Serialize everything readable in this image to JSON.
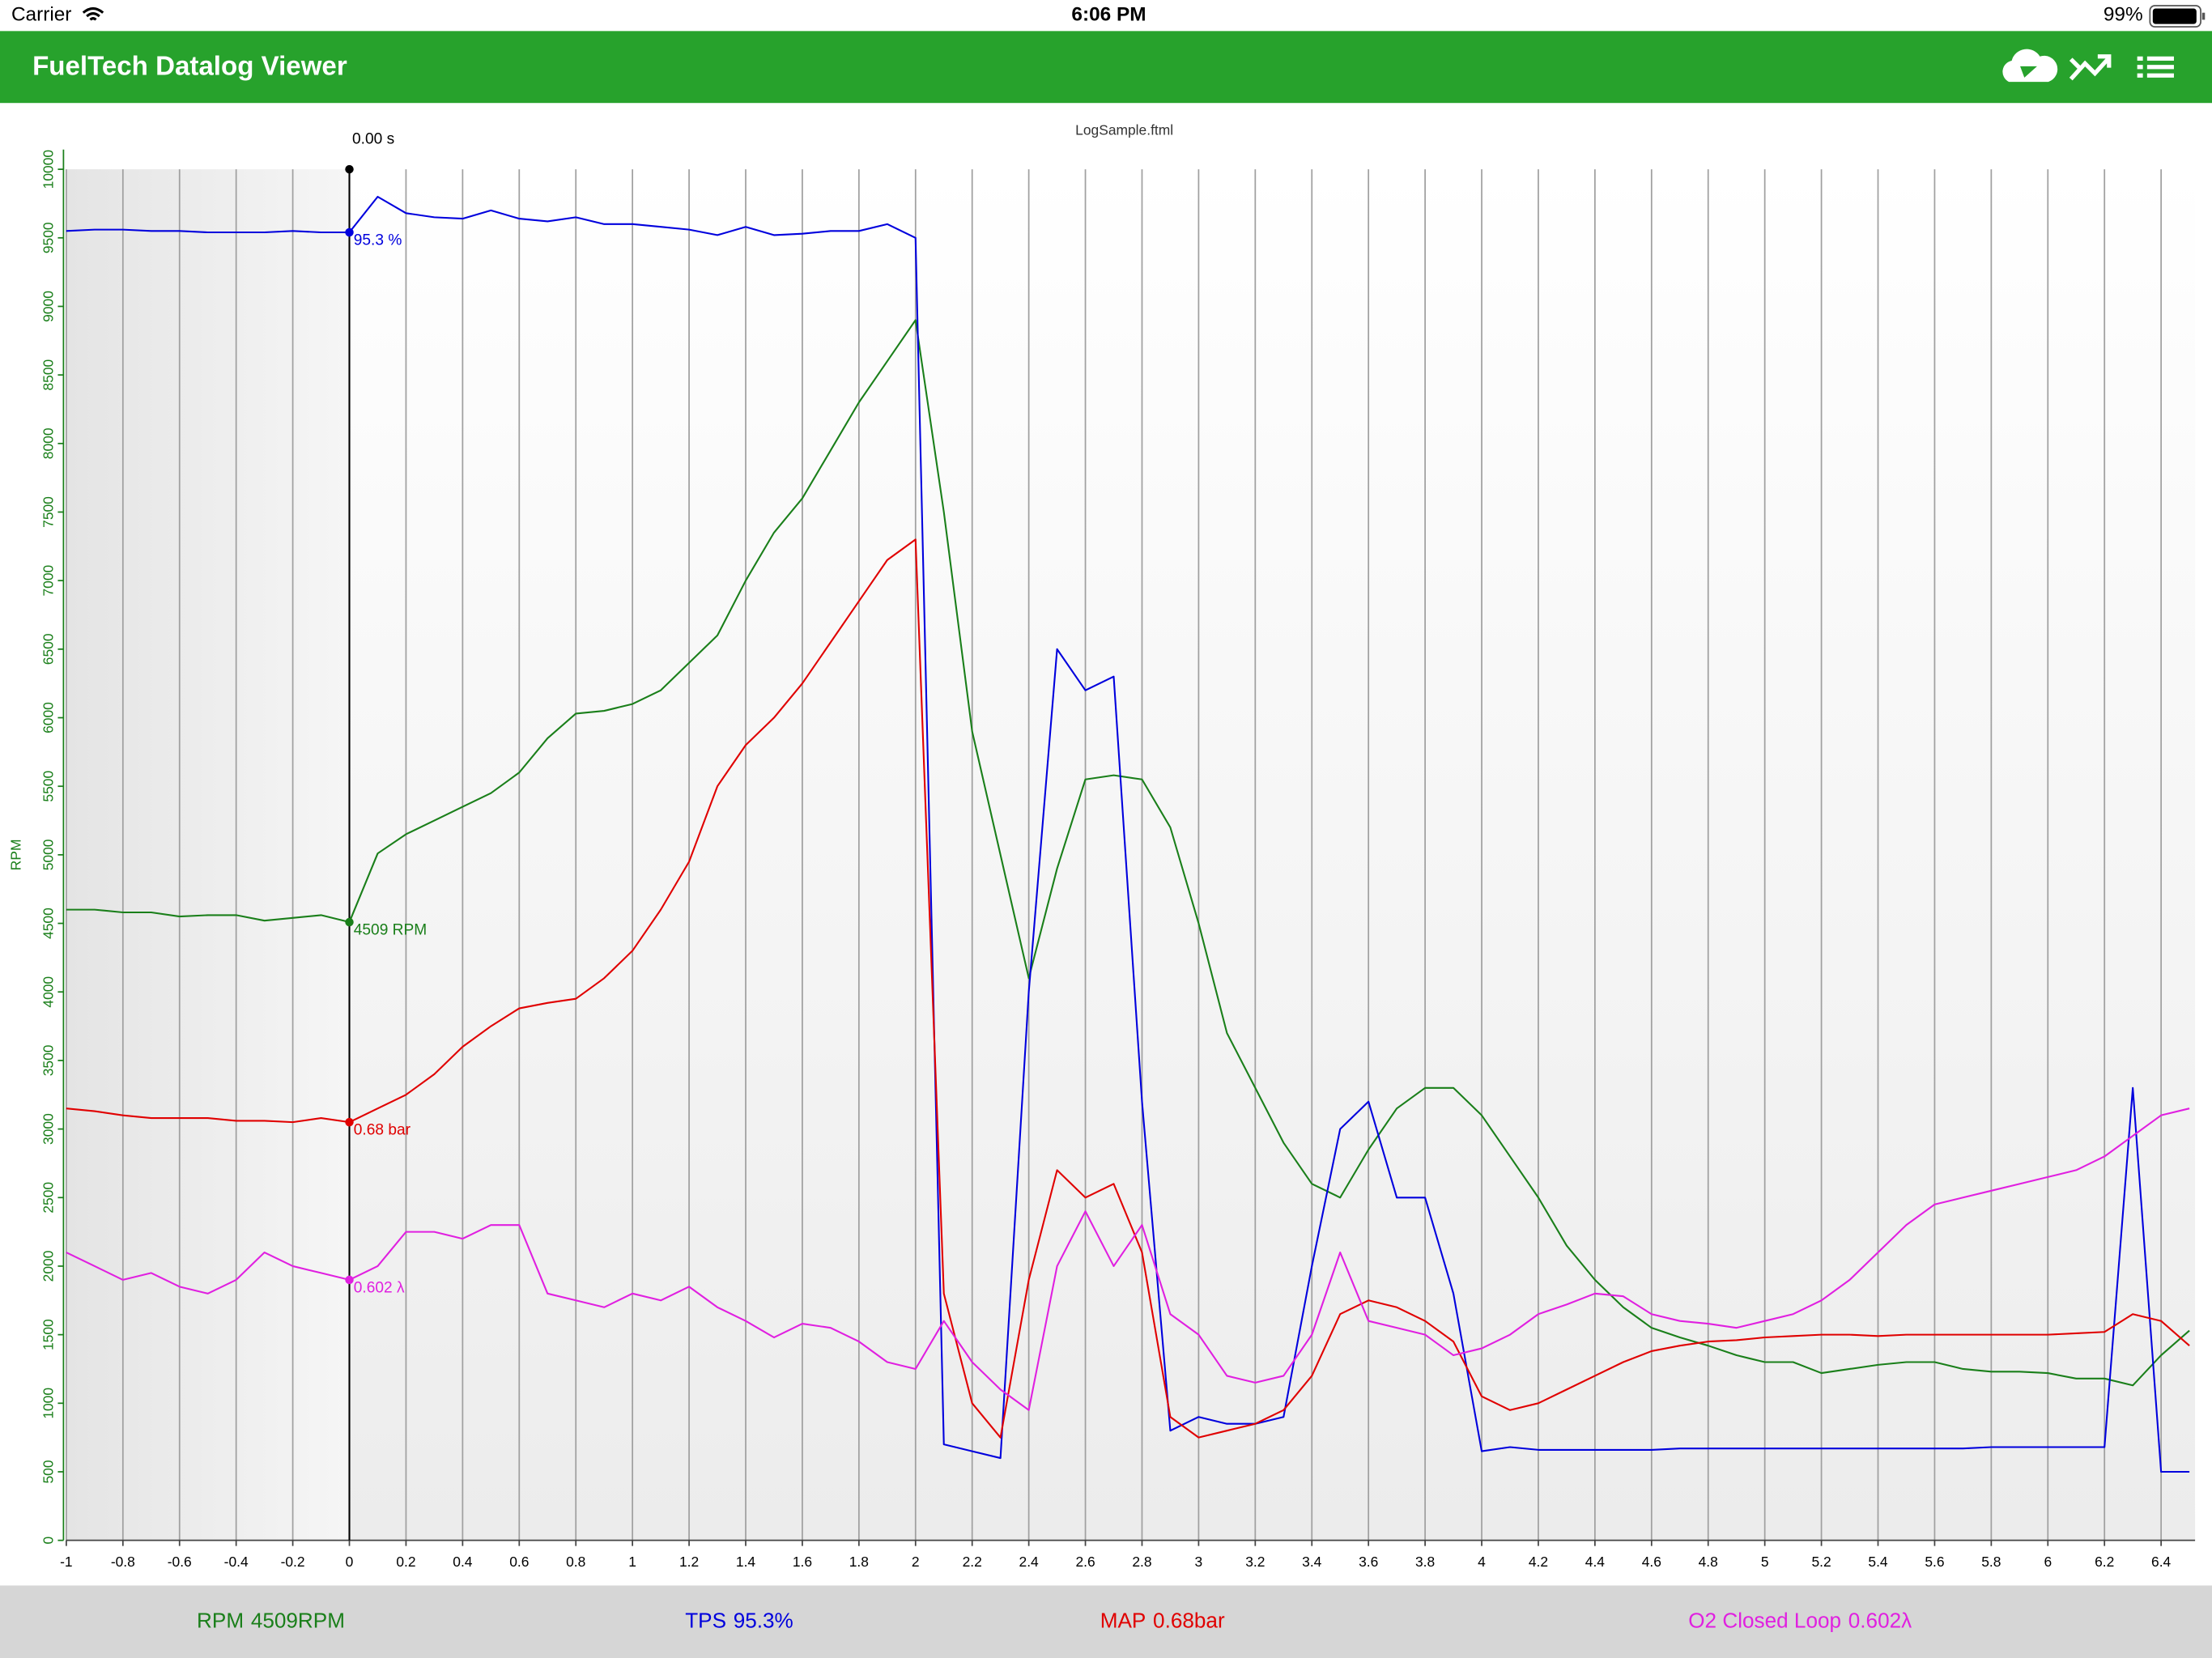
{
  "status_bar": {
    "carrier": "Carrier",
    "time": "6:06 PM",
    "battery": "99%"
  },
  "app_bar": {
    "title": "FuelTech Datalog Viewer"
  },
  "chart_data": {
    "type": "line",
    "title": "LogSample.ftml",
    "y_label": "RPM",
    "xlim": [
      -1,
      6.52
    ],
    "ylim": [
      0,
      10000
    ],
    "xticks": [
      -1,
      -0.8,
      -0.6,
      -0.4,
      -0.2,
      0,
      0.2,
      0.4,
      0.6,
      0.8,
      1,
      1.2,
      1.4,
      1.6,
      1.8,
      2,
      2.2,
      2.4,
      2.6,
      2.8,
      3,
      3.2,
      3.4,
      3.6,
      3.8,
      4,
      4.2,
      4.4,
      4.6,
      4.8,
      5,
      5.2,
      5.4,
      5.6,
      5.8,
      6,
      6.2,
      6.4
    ],
    "yticks": [
      0,
      500,
      1000,
      1500,
      2000,
      2500,
      3000,
      3500,
      4000,
      4500,
      5000,
      5500,
      6000,
      6500,
      7000,
      7500,
      8000,
      8500,
      9000,
      9500,
      10000
    ],
    "grid": true,
    "cursor": {
      "x": 0,
      "label": "0.00 s"
    },
    "x": [
      -1,
      -0.9,
      -0.8,
      -0.7,
      -0.6,
      -0.5,
      -0.4,
      -0.3,
      -0.2,
      -0.1,
      0,
      0.1,
      0.2,
      0.3,
      0.4,
      0.5,
      0.6,
      0.7,
      0.8,
      0.9,
      1,
      1.1,
      1.2,
      1.3,
      1.4,
      1.5,
      1.6,
      1.7,
      1.8,
      1.9,
      2,
      2.1,
      2.2,
      2.3,
      2.4,
      2.5,
      2.6,
      2.7,
      2.8,
      2.9,
      3,
      3.1,
      3.2,
      3.3,
      3.4,
      3.5,
      3.6,
      3.7,
      3.8,
      3.9,
      4,
      4.1,
      4.2,
      4.3,
      4.4,
      4.5,
      4.6,
      4.7,
      4.8,
      4.9,
      5,
      5.1,
      5.2,
      5.3,
      5.4,
      5.5,
      5.6,
      5.7,
      5.8,
      5.9,
      6,
      6.1,
      6.2,
      6.3,
      6.4,
      6.5
    ],
    "series": [
      {
        "name": "RPM",
        "readout": "4509RPM",
        "cursor_label": "4509 RPM",
        "color": "#1a7f1a",
        "values": [
          4600,
          4600,
          4580,
          4580,
          4550,
          4560,
          4560,
          4520,
          4540,
          4560,
          4509,
          5010,
          5150,
          5250,
          5350,
          5450,
          5600,
          5850,
          6030,
          6050,
          6100,
          6200,
          6400,
          6600,
          7000,
          7350,
          7600,
          7950,
          8300,
          8600,
          8900,
          7500,
          5900,
          5000,
          4100,
          4900,
          5550,
          5580,
          5550,
          5200,
          4500,
          3700,
          3300,
          2900,
          2600,
          2500,
          2850,
          3150,
          3300,
          3300,
          3100,
          2800,
          2500,
          2150,
          1900,
          1700,
          1550,
          1480,
          1420,
          1350,
          1300,
          1300,
          1220,
          1250,
          1280,
          1300,
          1300,
          1250,
          1230,
          1230,
          1220,
          1180,
          1180,
          1130,
          1350,
          1530
        ]
      },
      {
        "name": "TPS",
        "readout": "95.3%",
        "cursor_label": "95.3 %",
        "color": "#0000dd",
        "values": [
          9550,
          9560,
          9560,
          9550,
          9550,
          9540,
          9540,
          9540,
          9550,
          9540,
          9540,
          9800,
          9680,
          9650,
          9640,
          9700,
          9640,
          9620,
          9650,
          9600,
          9600,
          9580,
          9560,
          9520,
          9580,
          9520,
          9530,
          9550,
          9550,
          9600,
          9500,
          700,
          650,
          600,
          4000,
          6500,
          6200,
          6300,
          3200,
          800,
          900,
          850,
          850,
          900,
          2000,
          3000,
          3200,
          2500,
          2500,
          1800,
          650,
          680,
          660,
          660,
          660,
          660,
          660,
          670,
          670,
          670,
          670,
          670,
          670,
          670,
          670,
          670,
          670,
          670,
          680,
          680,
          680,
          680,
          680,
          3300,
          500,
          500
        ]
      },
      {
        "name": "MAP",
        "readout": "0.68bar",
        "cursor_label": "0.68 bar",
        "color": "#e00000",
        "values": [
          3150,
          3130,
          3100,
          3080,
          3080,
          3080,
          3060,
          3060,
          3050,
          3080,
          3050,
          3150,
          3250,
          3400,
          3600,
          3750,
          3880,
          3920,
          3950,
          4100,
          4300,
          4600,
          4950,
          5500,
          5800,
          6000,
          6250,
          6550,
          6850,
          7150,
          7300,
          1800,
          1000,
          750,
          1900,
          2700,
          2500,
          2600,
          2100,
          900,
          750,
          800,
          850,
          950,
          1200,
          1650,
          1750,
          1700,
          1600,
          1450,
          1050,
          950,
          1000,
          1100,
          1200,
          1300,
          1380,
          1420,
          1450,
          1460,
          1480,
          1490,
          1500,
          1500,
          1490,
          1500,
          1500,
          1500,
          1500,
          1500,
          1500,
          1510,
          1520,
          1650,
          1600,
          1420
        ]
      },
      {
        "name": "O2 Closed Loop",
        "readout": "0.602λ",
        "cursor_label": "0.602 λ",
        "color": "#e020e0",
        "values": [
          2100,
          2000,
          1900,
          1950,
          1850,
          1800,
          1900,
          2100,
          2000,
          1950,
          1900,
          2000,
          2250,
          2250,
          2200,
          2300,
          2300,
          1800,
          1750,
          1700,
          1800,
          1750,
          1850,
          1700,
          1600,
          1480,
          1580,
          1550,
          1450,
          1300,
          1250,
          1600,
          1300,
          1100,
          950,
          2000,
          2400,
          2000,
          2300,
          1650,
          1500,
          1200,
          1150,
          1200,
          1500,
          2100,
          1600,
          1550,
          1500,
          1350,
          1400,
          1500,
          1650,
          1720,
          1800,
          1780,
          1650,
          1600,
          1580,
          1550,
          1600,
          1650,
          1750,
          1900,
          2100,
          2300,
          2450,
          2500,
          2550,
          2600,
          2650,
          2700,
          2800,
          2950,
          3100,
          3150
        ]
      }
    ]
  }
}
